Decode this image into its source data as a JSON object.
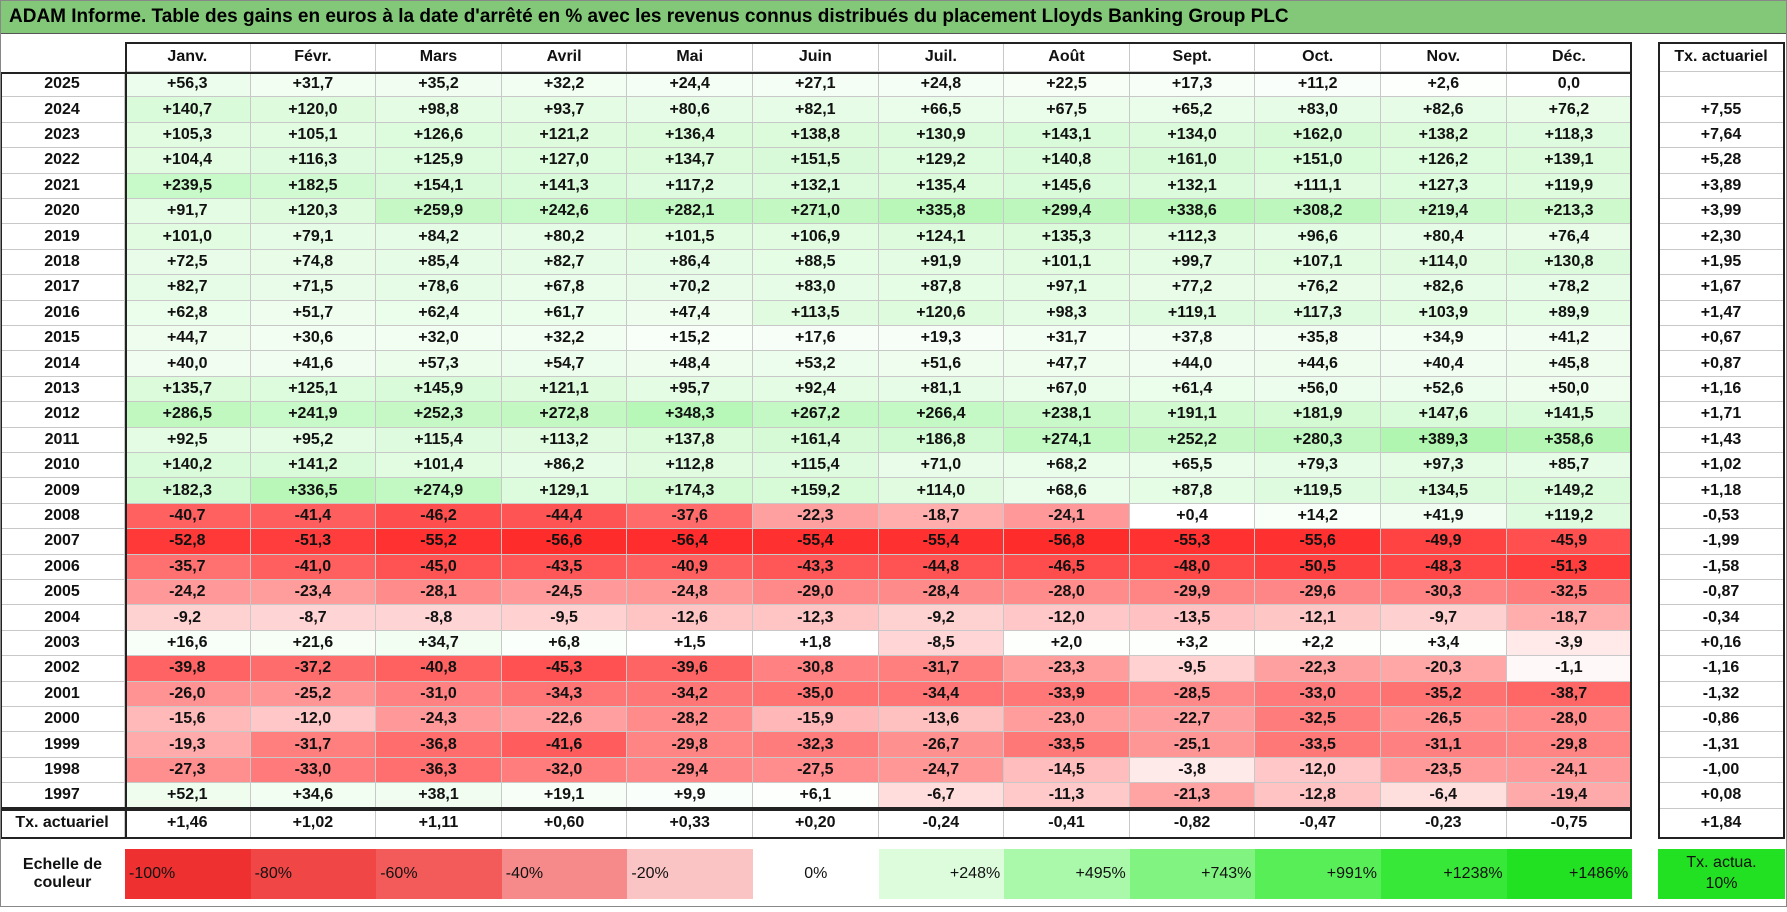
{
  "title": "ADAM Informe. Table des gains en euros à la date d'arrêté en % avec les revenus connus distribués du placement Lloyds Banking Group PLC",
  "table": {
    "columns": [
      "Janv.",
      "Févr.",
      "Mars",
      "Avril",
      "Mai",
      "Juin",
      "Juil.",
      "Août",
      "Sept.",
      "Oct.",
      "Nov.",
      "Déc."
    ],
    "rate_header": "Tx. actuariel",
    "rows": [
      {
        "year": "2025",
        "values": [
          "+56,3",
          "+31,7",
          "+35,2",
          "+32,2",
          "+24,4",
          "+27,1",
          "+24,8",
          "+22,5",
          "+17,3",
          "+11,2",
          "+2,6",
          "0,0"
        ]
      },
      {
        "year": "2024",
        "values": [
          "+140,7",
          "+120,0",
          "+98,8",
          "+93,7",
          "+80,6",
          "+82,1",
          "+66,5",
          "+67,5",
          "+65,2",
          "+83,0",
          "+82,6",
          "+76,2"
        ],
        "rate": "+7,55"
      },
      {
        "year": "2023",
        "values": [
          "+105,3",
          "+105,1",
          "+126,6",
          "+121,2",
          "+136,4",
          "+138,8",
          "+130,9",
          "+143,1",
          "+134,0",
          "+162,0",
          "+138,2",
          "+118,3"
        ],
        "rate": "+7,64"
      },
      {
        "year": "2022",
        "values": [
          "+104,4",
          "+116,3",
          "+125,9",
          "+127,0",
          "+134,7",
          "+151,5",
          "+129,2",
          "+140,8",
          "+161,0",
          "+151,0",
          "+126,2",
          "+139,1"
        ],
        "rate": "+5,28"
      },
      {
        "year": "2021",
        "values": [
          "+239,5",
          "+182,5",
          "+154,1",
          "+141,3",
          "+117,2",
          "+132,1",
          "+135,4",
          "+145,6",
          "+132,1",
          "+111,1",
          "+127,3",
          "+119,9"
        ],
        "rate": "+3,89"
      },
      {
        "year": "2020",
        "values": [
          "+91,7",
          "+120,3",
          "+259,9",
          "+242,6",
          "+282,1",
          "+271,0",
          "+335,8",
          "+299,4",
          "+338,6",
          "+308,2",
          "+219,4",
          "+213,3"
        ],
        "rate": "+3,99"
      },
      {
        "year": "2019",
        "values": [
          "+101,0",
          "+79,1",
          "+84,2",
          "+80,2",
          "+101,5",
          "+106,9",
          "+124,1",
          "+135,3",
          "+112,3",
          "+96,6",
          "+80,4",
          "+76,4"
        ],
        "rate": "+2,30"
      },
      {
        "year": "2018",
        "values": [
          "+72,5",
          "+74,8",
          "+85,4",
          "+82,7",
          "+86,4",
          "+88,5",
          "+91,9",
          "+101,1",
          "+99,7",
          "+107,1",
          "+114,0",
          "+130,8"
        ],
        "rate": "+1,95"
      },
      {
        "year": "2017",
        "values": [
          "+82,7",
          "+71,5",
          "+78,6",
          "+67,8",
          "+70,2",
          "+83,0",
          "+87,8",
          "+97,1",
          "+77,2",
          "+76,2",
          "+82,6",
          "+78,2"
        ],
        "rate": "+1,67"
      },
      {
        "year": "2016",
        "values": [
          "+62,8",
          "+51,7",
          "+62,4",
          "+61,7",
          "+47,4",
          "+113,5",
          "+120,6",
          "+98,3",
          "+119,1",
          "+117,3",
          "+103,9",
          "+89,9"
        ],
        "rate": "+1,47"
      },
      {
        "year": "2015",
        "values": [
          "+44,7",
          "+30,6",
          "+32,0",
          "+32,2",
          "+15,2",
          "+17,6",
          "+19,3",
          "+31,7",
          "+37,8",
          "+35,8",
          "+34,9",
          "+41,2"
        ],
        "rate": "+0,67"
      },
      {
        "year": "2014",
        "values": [
          "+40,0",
          "+41,6",
          "+57,3",
          "+54,7",
          "+48,4",
          "+53,2",
          "+51,6",
          "+47,7",
          "+44,0",
          "+44,6",
          "+40,4",
          "+45,8"
        ],
        "rate": "+0,87"
      },
      {
        "year": "2013",
        "values": [
          "+135,7",
          "+125,1",
          "+145,9",
          "+121,1",
          "+95,7",
          "+92,4",
          "+81,1",
          "+67,0",
          "+61,4",
          "+56,0",
          "+52,6",
          "+50,0"
        ],
        "rate": "+1,16"
      },
      {
        "year": "2012",
        "values": [
          "+286,5",
          "+241,9",
          "+252,3",
          "+272,8",
          "+348,3",
          "+267,2",
          "+266,4",
          "+238,1",
          "+191,1",
          "+181,9",
          "+147,6",
          "+141,5"
        ],
        "rate": "+1,71"
      },
      {
        "year": "2011",
        "values": [
          "+92,5",
          "+95,2",
          "+115,4",
          "+113,2",
          "+137,8",
          "+161,4",
          "+186,8",
          "+274,1",
          "+252,2",
          "+280,3",
          "+389,3",
          "+358,6"
        ],
        "rate": "+1,43"
      },
      {
        "year": "2010",
        "values": [
          "+140,2",
          "+141,2",
          "+101,4",
          "+86,2",
          "+112,8",
          "+115,4",
          "+71,0",
          "+68,2",
          "+65,5",
          "+79,3",
          "+97,3",
          "+85,7"
        ],
        "rate": "+1,02"
      },
      {
        "year": "2009",
        "values": [
          "+182,3",
          "+336,5",
          "+274,9",
          "+129,1",
          "+174,3",
          "+159,2",
          "+114,0",
          "+68,6",
          "+87,8",
          "+119,5",
          "+134,5",
          "+149,2"
        ],
        "rate": "+1,18"
      },
      {
        "year": "2008",
        "values": [
          "-40,7",
          "-41,4",
          "-46,2",
          "-44,4",
          "-37,6",
          "-22,3",
          "-18,7",
          "-24,1",
          "+0,4",
          "+14,2",
          "+41,9",
          "+119,2"
        ],
        "rate": "-0,53"
      },
      {
        "year": "2007",
        "values": [
          "-52,8",
          "-51,3",
          "-55,2",
          "-56,6",
          "-56,4",
          "-55,4",
          "-55,4",
          "-56,8",
          "-55,3",
          "-55,6",
          "-49,9",
          "-45,9"
        ],
        "rate": "-1,99"
      },
      {
        "year": "2006",
        "values": [
          "-35,7",
          "-41,0",
          "-45,0",
          "-43,5",
          "-40,9",
          "-43,3",
          "-44,8",
          "-46,5",
          "-48,0",
          "-50,5",
          "-48,3",
          "-51,3"
        ],
        "rate": "-1,58"
      },
      {
        "year": "2005",
        "values": [
          "-24,2",
          "-23,4",
          "-28,1",
          "-24,5",
          "-24,8",
          "-29,0",
          "-28,4",
          "-28,0",
          "-29,9",
          "-29,6",
          "-30,3",
          "-32,5"
        ],
        "rate": "-0,87"
      },
      {
        "year": "2004",
        "values": [
          "-9,2",
          "-8,7",
          "-8,8",
          "-9,5",
          "-12,6",
          "-12,3",
          "-9,2",
          "-12,0",
          "-13,5",
          "-12,1",
          "-9,7",
          "-18,7"
        ],
        "rate": "-0,34"
      },
      {
        "year": "2003",
        "values": [
          "+16,6",
          "+21,6",
          "+34,7",
          "+6,8",
          "+1,5",
          "+1,8",
          "-8,5",
          "+2,0",
          "+3,2",
          "+2,2",
          "+3,4",
          "-3,9"
        ],
        "rate": "+0,16"
      },
      {
        "year": "2002",
        "values": [
          "-39,8",
          "-37,2",
          "-40,8",
          "-45,3",
          "-39,6",
          "-30,8",
          "-31,7",
          "-23,3",
          "-9,5",
          "-22,3",
          "-20,3",
          "-1,1"
        ],
        "rate": "-1,16"
      },
      {
        "year": "2001",
        "values": [
          "-26,0",
          "-25,2",
          "-31,0",
          "-34,3",
          "-34,2",
          "-35,0",
          "-34,4",
          "-33,9",
          "-28,5",
          "-33,0",
          "-35,2",
          "-38,7"
        ],
        "rate": "-1,32"
      },
      {
        "year": "2000",
        "values": [
          "-15,6",
          "-12,0",
          "-24,3",
          "-22,6",
          "-28,2",
          "-15,9",
          "-13,6",
          "-23,0",
          "-22,7",
          "-32,5",
          "-26,5",
          "-28,0"
        ],
        "rate": "-0,86"
      },
      {
        "year": "1999",
        "values": [
          "-19,3",
          "-31,7",
          "-36,8",
          "-41,6",
          "-29,8",
          "-32,3",
          "-26,7",
          "-33,5",
          "-25,1",
          "-33,5",
          "-31,1",
          "-29,8"
        ],
        "rate": "-1,31"
      },
      {
        "year": "1998",
        "values": [
          "-27,3",
          "-33,0",
          "-36,3",
          "-32,0",
          "-29,4",
          "-27,5",
          "-24,7",
          "-14,5",
          "-3,8",
          "-12,0",
          "-23,5",
          "-24,1"
        ],
        "rate": "-1,00"
      },
      {
        "year": "1997",
        "values": [
          "+52,1",
          "+34,6",
          "+38,1",
          "+19,1",
          "+9,9",
          "+6,1",
          "-6,7",
          "-11,3",
          "-21,3",
          "-12,8",
          "-6,4",
          "-19,4"
        ],
        "rate": "+0,08"
      }
    ],
    "footer": {
      "label": "Tx. actuariel",
      "values": [
        "+1,46",
        "+1,02",
        "+1,11",
        "+0,60",
        "+0,33",
        "+0,20",
        "-0,24",
        "-0,41",
        "-0,82",
        "-0,47",
        "-0,23",
        "-0,75"
      ],
      "rate": "+1,84"
    }
  },
  "legend": {
    "label": "Echelle de couleur",
    "steps": [
      "-100%",
      "-80%",
      "-60%",
      "-40%",
      "-20%",
      "0%",
      "+248%",
      "+495%",
      "+743%",
      "+991%",
      "+1238%",
      "+1486%"
    ],
    "rate": "Tx. actua. 10%"
  }
}
